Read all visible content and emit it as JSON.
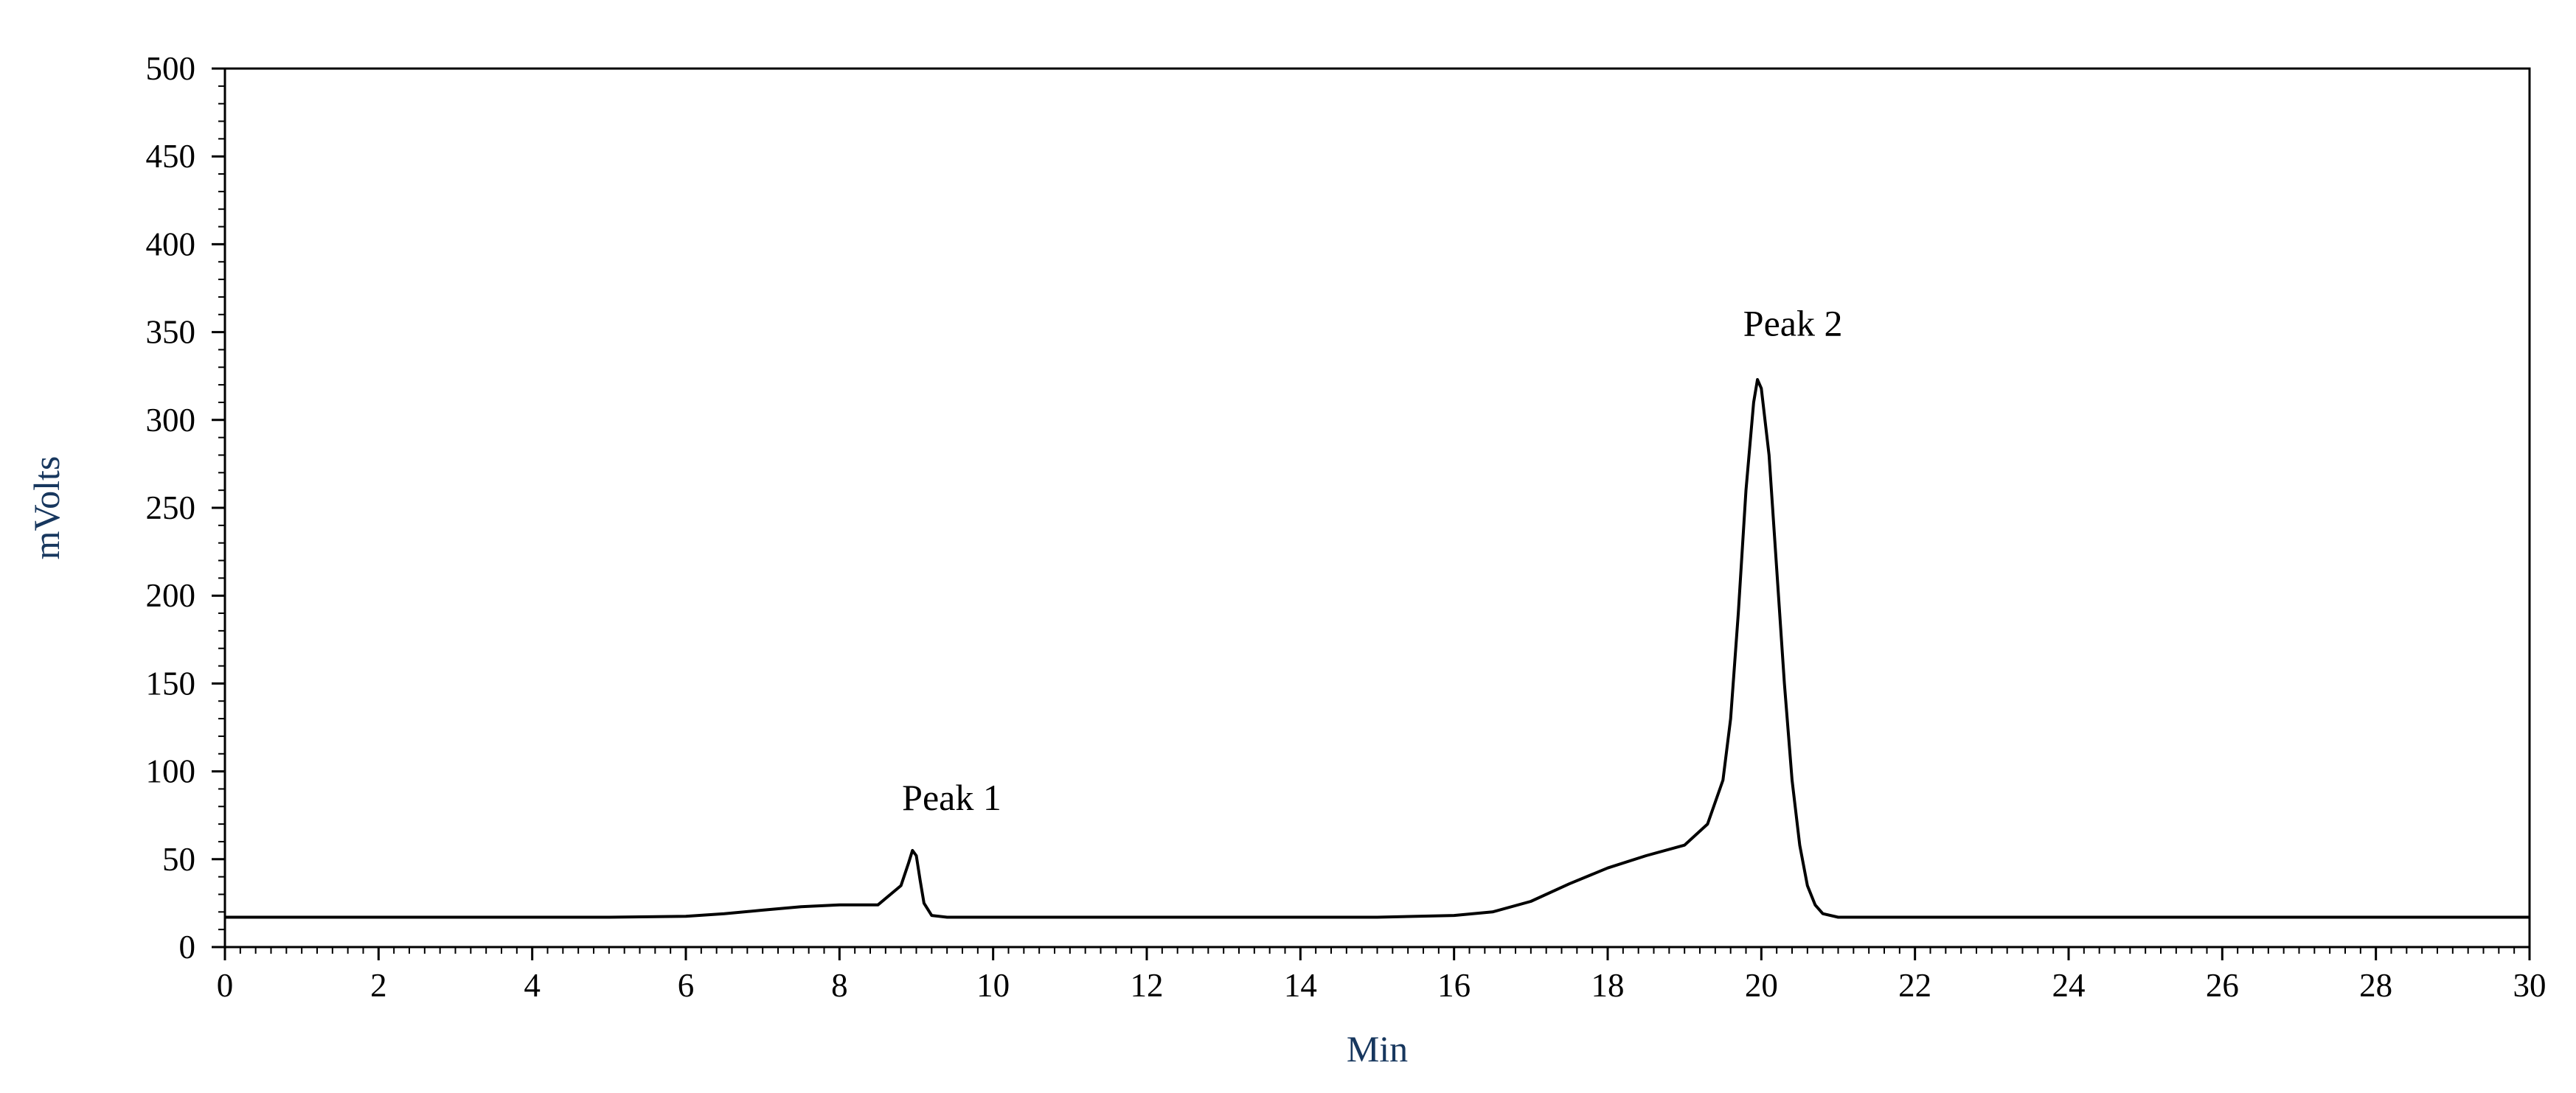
{
  "chart_data": {
    "type": "line",
    "title": "",
    "xlabel": "Min",
    "ylabel": "mVolts",
    "xlim": [
      0,
      30
    ],
    "ylim": [
      0,
      500
    ],
    "x_ticks": [
      0,
      2,
      4,
      6,
      8,
      10,
      12,
      14,
      16,
      18,
      20,
      22,
      24,
      26,
      28,
      30
    ],
    "y_ticks": [
      0,
      50,
      100,
      150,
      200,
      250,
      300,
      350,
      400,
      450,
      500
    ],
    "grid": false,
    "legend": "none",
    "line_color": "#000000",
    "axis_label_color": "#17375e",
    "series": [
      {
        "x": [
          0,
          1,
          2,
          3,
          4,
          5,
          6,
          6.5,
          7,
          7.5,
          8,
          8.5,
          8.8,
          8.9,
          8.95,
          9.0,
          9.05,
          9.1,
          9.2,
          9.4,
          9.6,
          10,
          12,
          14,
          15,
          16,
          16.5,
          17,
          17.5,
          18,
          18.5,
          19,
          19.3,
          19.5,
          19.6,
          19.7,
          19.8,
          19.9,
          19.95,
          20.0,
          20.1,
          20.2,
          20.3,
          20.4,
          20.5,
          20.6,
          20.7,
          20.8,
          21.0,
          21.5,
          22,
          24,
          26,
          28,
          30
        ],
        "y": [
          17,
          17,
          17,
          17,
          17,
          17,
          17.5,
          19,
          21,
          23,
          24,
          24,
          35,
          48,
          55,
          52,
          38,
          25,
          18,
          17,
          17,
          17,
          17,
          17,
          17,
          18,
          20,
          26,
          36,
          45,
          52,
          58,
          70,
          95,
          130,
          190,
          260,
          310,
          323,
          318,
          280,
          215,
          150,
          95,
          58,
          35,
          24,
          19,
          17,
          17,
          17,
          17,
          17,
          17,
          17
        ]
      }
    ],
    "annotations": [
      {
        "text": "Peak 1",
        "x": 9.0,
        "y": 57
      },
      {
        "text": "Peak 2",
        "x": 19.95,
        "y": 327
      }
    ]
  }
}
